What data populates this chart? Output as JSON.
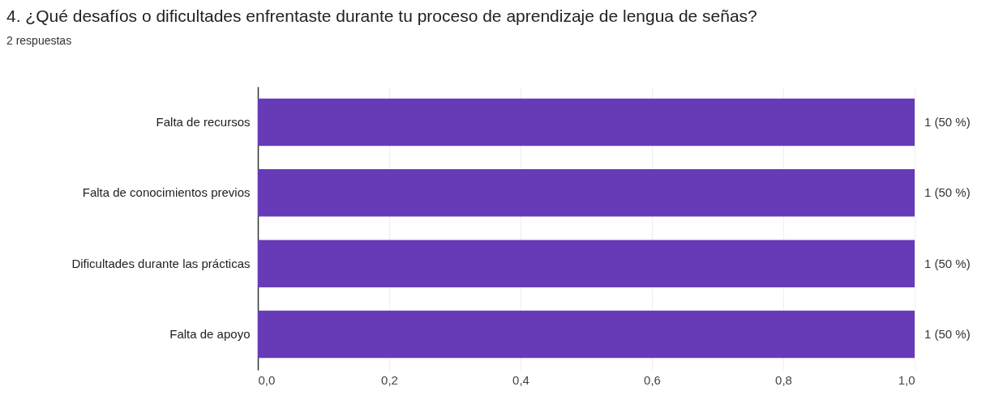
{
  "chart_data": {
    "type": "bar",
    "orientation": "horizontal",
    "title": "4. ¿Qué desafíos o dificultades enfrentaste durante tu proceso de aprendizaje de lengua de señas?",
    "subtitle": "2 respuestas",
    "categories": [
      "Falta de recursos",
      "Falta de conocimientos previos",
      "Dificultades durante las prácticas",
      "Falta de apoyo"
    ],
    "values": [
      1,
      1,
      1,
      1
    ],
    "color": "#673ab7",
    "value_labels": [
      "1 (50 %)",
      "1 (50 %)",
      "1 (50 %)",
      "1 (50 %)"
    ],
    "xlim": [
      0,
      1
    ],
    "xticks": [
      {
        "value": 0,
        "label": "0,0"
      },
      {
        "value": 0.2,
        "label": "0,2"
      },
      {
        "value": 0.4,
        "label": "0,4"
      },
      {
        "value": 0.6,
        "label": "0,6"
      },
      {
        "value": 0.8,
        "label": "0,8"
      },
      {
        "value": 1,
        "label": "1,0"
      }
    ],
    "grid": "x"
  }
}
